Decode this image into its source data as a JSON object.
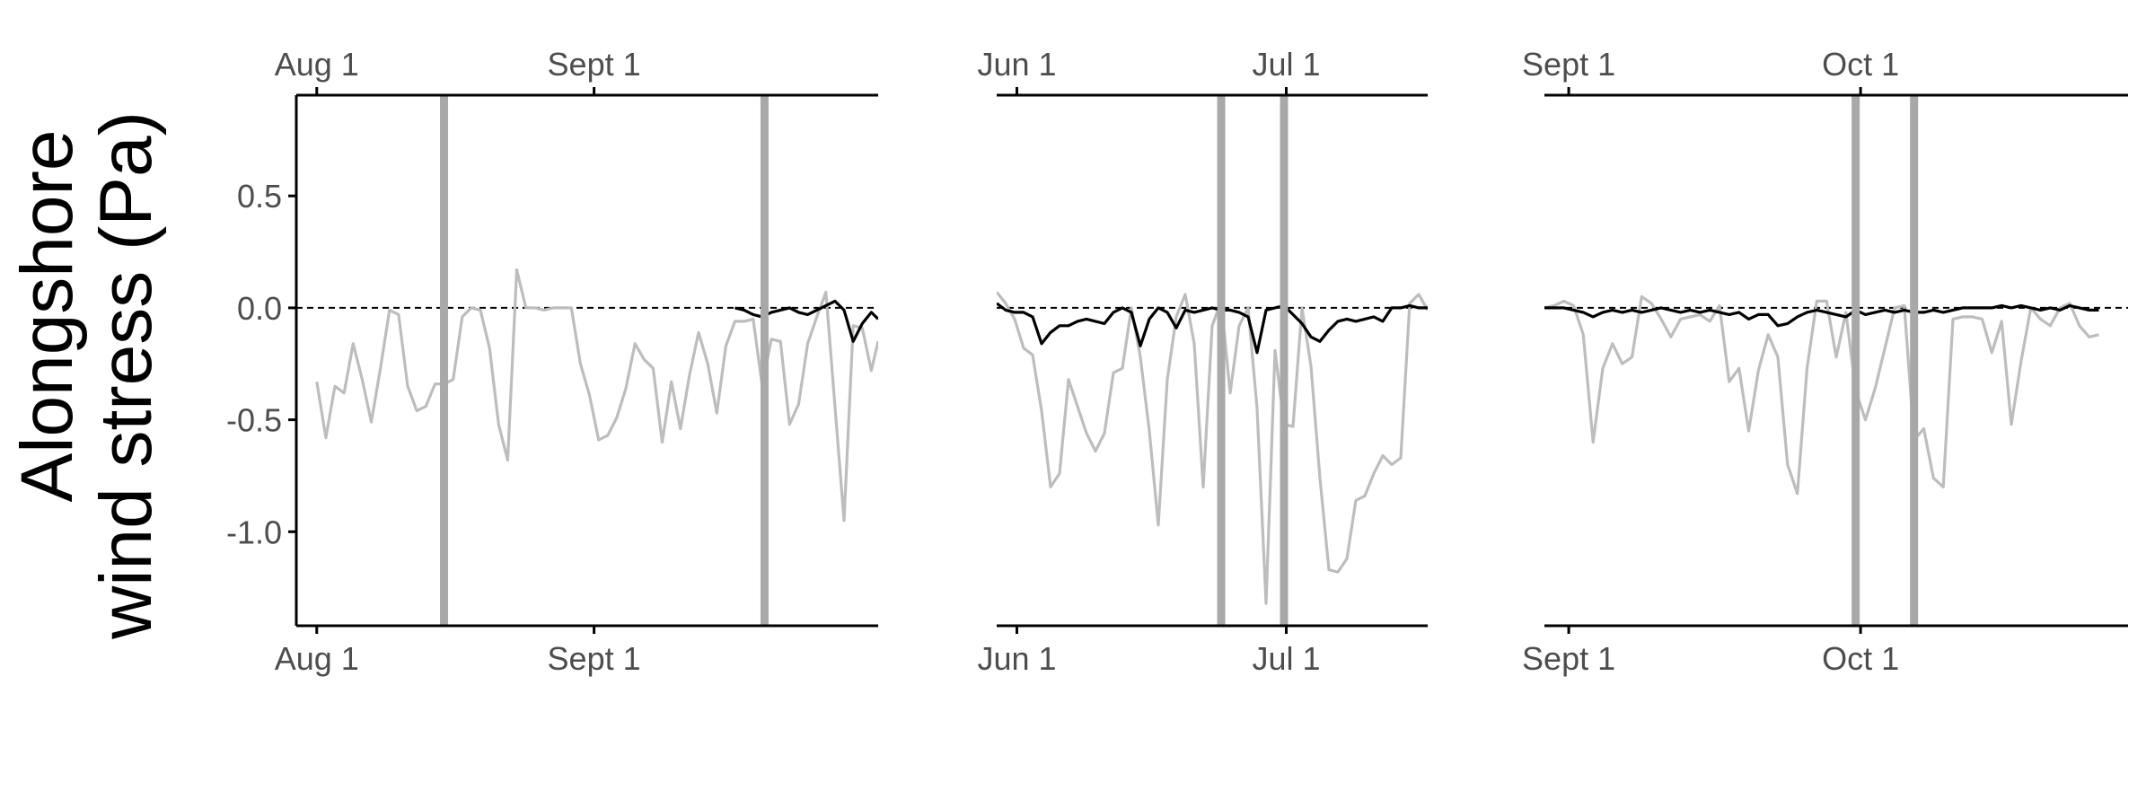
{
  "colors": {
    "background": "#ffffff",
    "axis": "#000000",
    "tick_text": "#4d4d4d",
    "gray_series": "#bdbdbd",
    "black_series": "#000000",
    "event_bars": "#a8a8a8",
    "zero_line": "#000000"
  },
  "chart_data": {
    "type": "line",
    "ylabel": [
      "Alongshore",
      "wind stress (Pa)"
    ],
    "ylim": [
      -1.42,
      0.95
    ],
    "yticks": [
      0.5,
      0.0,
      -0.5,
      -1.0
    ],
    "ytick_labels": [
      "0.5",
      "0.0",
      "-0.5",
      "-1.0"
    ],
    "grid": false,
    "legend": "none",
    "panels": [
      {
        "xlim": [
          -9,
          247
        ],
        "xticks": [
          0,
          122
        ],
        "xtick_labels": [
          "Aug 1",
          "Sept 1"
        ],
        "event_lines": [
          56,
          197
        ],
        "series": [
          {
            "color": "gray",
            "x": [
              0,
              4,
              8,
              12,
              16,
              20,
              24,
              28,
              32,
              36,
              40,
              44,
              48,
              52,
              56,
              60,
              64,
              68,
              72,
              76,
              80,
              84,
              88,
              92,
              96,
              100,
              104,
              108,
              112,
              116,
              120,
              124,
              128,
              132,
              136,
              140,
              144,
              148,
              152,
              156,
              160,
              164,
              168,
              172,
              176,
              180,
              184,
              188,
              192,
              196,
              200,
              204,
              208,
              212,
              216,
              220,
              224,
              228,
              232,
              236,
              240,
              244,
              247
            ],
            "values": [
              -0.33,
              -0.58,
              -0.35,
              -0.38,
              -0.16,
              -0.32,
              -0.51,
              -0.27,
              -0.01,
              -0.03,
              -0.35,
              -0.46,
              -0.44,
              -0.34,
              -0.34,
              -0.32,
              -0.04,
              0.0,
              -0.01,
              -0.18,
              -0.52,
              -0.68,
              0.17,
              0.0,
              0.0,
              -0.01,
              -0.0,
              0.0,
              -0.0,
              -0.25,
              -0.39,
              -0.59,
              -0.57,
              -0.49,
              -0.36,
              -0.16,
              -0.23,
              -0.27,
              -0.6,
              -0.33,
              -0.54,
              -0.3,
              -0.11,
              -0.25,
              -0.47,
              -0.17,
              -0.06,
              -0.06,
              -0.05,
              -0.35,
              -0.14,
              -0.15,
              -0.52,
              -0.43,
              -0.16,
              -0.04,
              0.07,
              -0.44,
              -0.95,
              -0.08,
              -0.09,
              -0.28,
              -0.15
            ]
          },
          {
            "color": "black",
            "x": [
              184,
              188,
              192,
              196,
              200,
              204,
              208,
              212,
              216,
              220,
              224,
              228,
              232,
              236,
              240,
              244,
              247
            ],
            "values": [
              -0.0,
              -0.01,
              -0.03,
              -0.04,
              -0.02,
              -0.01,
              -0.0,
              -0.02,
              -0.03,
              -0.01,
              0.01,
              0.03,
              -0.01,
              -0.15,
              -0.07,
              -0.02,
              -0.05
            ]
          }
        ]
      },
      {
        "xlim": [
          -9,
          183
        ],
        "xticks": [
          0,
          120
        ],
        "xtick_labels": [
          "Jun 1",
          "Jul 1"
        ],
        "event_lines": [
          91,
          119
        ],
        "series": [
          {
            "color": "gray",
            "x": [
              -9,
              -5,
              -1,
              3,
              7,
              11,
              15,
              19,
              23,
              27,
              31,
              35,
              39,
              43,
              47,
              51,
              55,
              59,
              63,
              67,
              71,
              75,
              79,
              83,
              87,
              91,
              95,
              99,
              103,
              107,
              111,
              115,
              119,
              123,
              127,
              131,
              135,
              139,
              143,
              147,
              151,
              155,
              159,
              163,
              167,
              171,
              175,
              179,
              183
            ],
            "values": [
              0.07,
              0.02,
              -0.05,
              -0.18,
              -0.21,
              -0.46,
              -0.8,
              -0.74,
              -0.32,
              -0.44,
              -0.56,
              -0.64,
              -0.56,
              -0.29,
              -0.27,
              -0.0,
              -0.22,
              -0.55,
              -0.97,
              -0.32,
              -0.04,
              0.06,
              -0.16,
              -0.8,
              -0.08,
              0.03,
              -0.38,
              -0.08,
              -0.0,
              -0.45,
              -1.32,
              -0.19,
              -0.52,
              -0.53,
              0.0,
              -0.26,
              -0.76,
              -1.17,
              -1.18,
              -1.12,
              -0.86,
              -0.84,
              -0.74,
              -0.66,
              -0.7,
              -0.67,
              0.02,
              0.06,
              -0.01
            ]
          },
          {
            "color": "black",
            "x": [
              -9,
              -5,
              -1,
              3,
              7,
              11,
              15,
              19,
              23,
              27,
              31,
              35,
              39,
              43,
              47,
              51,
              55,
              59,
              63,
              67,
              71,
              75,
              79,
              83,
              87,
              91,
              95,
              99,
              103,
              107,
              111,
              115,
              119,
              123,
              127,
              131,
              135,
              139,
              143,
              147,
              151,
              155,
              159,
              163,
              167,
              171,
              175,
              179,
              183
            ],
            "values": [
              0.02,
              -0.01,
              -0.02,
              -0.02,
              -0.04,
              -0.16,
              -0.11,
              -0.08,
              -0.08,
              -0.06,
              -0.05,
              -0.06,
              -0.07,
              -0.02,
              0.0,
              -0.02,
              -0.17,
              -0.05,
              -0.0,
              -0.02,
              -0.09,
              -0.01,
              -0.02,
              -0.01,
              0.0,
              -0.01,
              -0.01,
              -0.02,
              -0.04,
              -0.2,
              -0.01,
              0.0,
              0.01,
              -0.03,
              -0.07,
              -0.13,
              -0.15,
              -0.1,
              -0.06,
              -0.05,
              -0.06,
              -0.05,
              -0.04,
              -0.06,
              0.0,
              0.0,
              0.01,
              0.0,
              0.0
            ]
          }
        ]
      },
      {
        "xlim": [
          -5,
          235
        ],
        "xticks": [
          5,
          125
        ],
        "xtick_labels": [
          "Sept 1",
          "Oct 1"
        ],
        "event_lines": [
          123,
          147
        ],
        "series": [
          {
            "color": "gray",
            "x": [
              -5,
              -1,
              3,
              7,
              11,
              15,
              19,
              23,
              27,
              31,
              35,
              39,
              43,
              47,
              51,
              55,
              59,
              63,
              67,
              71,
              75,
              79,
              83,
              87,
              91,
              95,
              99,
              103,
              107,
              111,
              115,
              119,
              123,
              127,
              131,
              135,
              139,
              143,
              147,
              151,
              155,
              159,
              163,
              167,
              171,
              175,
              179,
              183,
              187,
              191,
              195,
              199,
              203,
              207,
              211,
              215,
              219,
              223
            ],
            "values": [
              0.0,
              0.01,
              0.03,
              0.01,
              -0.12,
              -0.6,
              -0.27,
              -0.16,
              -0.25,
              -0.22,
              0.05,
              0.02,
              -0.05,
              -0.13,
              -0.05,
              -0.04,
              -0.03,
              -0.06,
              0.01,
              -0.33,
              -0.27,
              -0.55,
              -0.28,
              -0.12,
              -0.22,
              -0.7,
              -0.83,
              -0.27,
              0.03,
              0.03,
              -0.22,
              -0.02,
              -0.37,
              -0.5,
              -0.36,
              -0.18,
              0.0,
              0.01,
              -0.59,
              -0.54,
              -0.76,
              -0.8,
              -0.05,
              -0.04,
              -0.04,
              -0.05,
              -0.2,
              -0.06,
              -0.52,
              -0.24,
              0.0,
              -0.05,
              -0.08,
              0.0,
              0.02,
              -0.08,
              -0.13,
              -0.12
            ]
          },
          {
            "color": "black",
            "x": [
              -5,
              -1,
              3,
              7,
              11,
              15,
              19,
              23,
              27,
              31,
              35,
              39,
              43,
              47,
              51,
              55,
              59,
              63,
              67,
              71,
              75,
              79,
              83,
              87,
              91,
              95,
              99,
              103,
              107,
              111,
              115,
              119,
              123,
              127,
              131,
              135,
              139,
              143,
              147,
              151,
              155,
              159,
              163,
              167,
              171,
              175,
              179,
              183,
              187,
              191,
              195,
              199,
              203,
              207,
              211,
              215,
              219,
              223
            ],
            "values": [
              0.0,
              0.0,
              0.0,
              -0.01,
              -0.02,
              -0.04,
              -0.02,
              -0.01,
              -0.02,
              -0.01,
              -0.02,
              -0.01,
              0.0,
              -0.01,
              -0.02,
              -0.01,
              -0.02,
              -0.01,
              -0.02,
              -0.03,
              -0.02,
              -0.05,
              -0.03,
              -0.03,
              -0.08,
              -0.07,
              -0.04,
              -0.02,
              -0.01,
              -0.02,
              -0.03,
              -0.04,
              -0.01,
              -0.03,
              -0.02,
              -0.01,
              -0.02,
              -0.01,
              -0.02,
              -0.02,
              -0.01,
              -0.02,
              -0.01,
              0.0,
              0.0,
              0.0,
              0.0,
              0.01,
              0.0,
              0.01,
              0.0,
              -0.01,
              0.0,
              -0.01,
              0.01,
              0.0,
              -0.01,
              -0.01
            ]
          }
        ]
      }
    ]
  }
}
